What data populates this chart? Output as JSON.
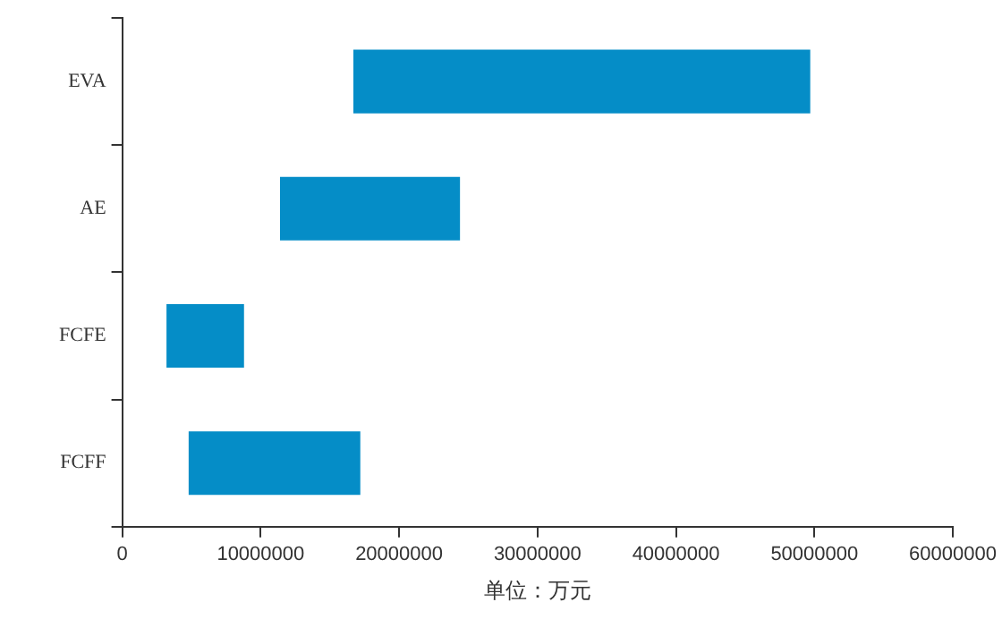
{
  "chart_data": {
    "type": "bar",
    "orientation": "horizontal",
    "xlabel": "单位：万元",
    "categories": [
      "EVA",
      "AE",
      "FCFE",
      "FCFF"
    ],
    "series": [
      {
        "color": "#058dc7",
        "values": [
          33000000,
          13000000,
          5600000,
          12400000
        ],
        "base": [
          16700000,
          11400000,
          3200000,
          4800000
        ]
      }
    ],
    "xlim": [
      0,
      60000000
    ],
    "xticks": [
      0,
      10000000,
      20000000,
      30000000,
      40000000,
      50000000,
      60000000
    ],
    "grid": false,
    "legend": false
  }
}
